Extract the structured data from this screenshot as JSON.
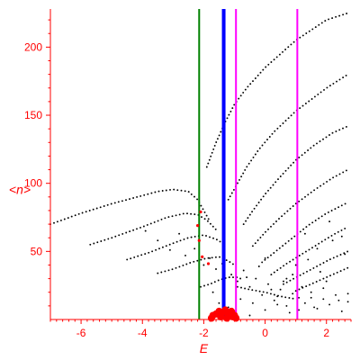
{
  "chart_data": {
    "type": "scatter",
    "title": "",
    "xlabel": "E",
    "ylabel": "<n>",
    "xlim": [
      -7,
      2.8
    ],
    "ylim": [
      0,
      228
    ],
    "xticks": [
      -6,
      -4,
      -2,
      0,
      2
    ],
    "yticks": [
      50,
      100,
      150,
      200
    ],
    "grid": false,
    "colors": {
      "axes": "#ff0000",
      "points": "#000000",
      "highlight_points": "#ff0000",
      "line_green": "#008000",
      "line_blue": "#0000ff",
      "line_magenta": "#ff00ff"
    },
    "vertical_lines": [
      {
        "x": -2.15,
        "color": "#008000",
        "width": 2
      },
      {
        "x": -1.35,
        "color": "#0000ff",
        "width": 4
      },
      {
        "x": -0.95,
        "color": "#ff00ff",
        "width": 2
      },
      {
        "x": 1.05,
        "color": "#ff00ff",
        "width": 2
      }
    ],
    "curves": [
      {
        "x": [
          -7.0,
          -6.0,
          -5.0,
          -4.0,
          -3.5,
          -3.0,
          -2.5,
          -2.2,
          -2.0,
          -1.8
        ],
        "y": [
          70,
          78,
          85,
          91,
          94,
          95.5,
          94,
          88,
          80,
          72
        ]
      },
      {
        "x": [
          -5.7,
          -5.0,
          -4.0,
          -3.2,
          -2.6,
          -2.2,
          -1.9,
          -1.6
        ],
        "y": [
          55,
          60,
          68,
          75,
          78,
          77,
          73,
          66
        ]
      },
      {
        "x": [
          -4.5,
          -3.8,
          -3.0,
          -2.5,
          -2.0,
          -1.6,
          -1.3
        ],
        "y": [
          44,
          49,
          56,
          60,
          62,
          59,
          55
        ]
      },
      {
        "x": [
          -3.5,
          -3.0,
          -2.4,
          -1.9,
          -1.5,
          -1.2,
          -1.0
        ],
        "y": [
          34,
          37,
          42,
          45,
          46,
          43,
          40
        ]
      },
      {
        "x": [
          -2.1,
          -1.8,
          -1.5,
          -1.2,
          -0.9,
          -0.7
        ],
        "y": [
          24,
          26,
          29,
          31,
          31,
          29
        ]
      },
      {
        "x": [
          -1.9,
          -1.6,
          -1.3,
          -1.0,
          -0.6,
          0.0,
          1.0,
          2.0,
          2.7
        ],
        "y": [
          112,
          130,
          145,
          158,
          170,
          185,
          205,
          220,
          225
        ]
      },
      {
        "x": [
          -1.2,
          -0.9,
          -0.6,
          -0.2,
          0.3,
          1.0,
          2.0,
          2.7
        ],
        "y": [
          88,
          100,
          112,
          125,
          138,
          153,
          170,
          180
        ]
      },
      {
        "x": [
          -0.7,
          -0.4,
          0.0,
          0.5,
          1.0,
          1.6,
          2.2,
          2.7
        ],
        "y": [
          70,
          80,
          92,
          105,
          117,
          128,
          137,
          142
        ]
      },
      {
        "x": [
          -0.4,
          0.0,
          0.5,
          1.0,
          1.6,
          2.2,
          2.7
        ],
        "y": [
          54,
          64,
          75,
          85,
          95,
          104,
          110
        ]
      },
      {
        "x": [
          -0.1,
          0.4,
          0.9,
          1.4,
          2.0,
          2.7
        ],
        "y": [
          42,
          51,
          60,
          69,
          78,
          86
        ]
      },
      {
        "x": [
          0.2,
          0.7,
          1.2,
          1.7,
          2.2,
          2.7
        ],
        "y": [
          33,
          41,
          48,
          55,
          62,
          68
        ]
      },
      {
        "x": [
          0.6,
          1.1,
          1.6,
          2.1,
          2.7
        ],
        "y": [
          26,
          32,
          38,
          44,
          50
        ]
      },
      {
        "x": [
          1.0,
          1.5,
          2.0,
          2.5,
          2.8
        ],
        "y": [
          21,
          26,
          31,
          36,
          39
        ]
      },
      {
        "x": [
          -0.9,
          -0.5,
          0.0,
          0.5,
          1.0
        ],
        "y": [
          24,
          22,
          20,
          17,
          15
        ]
      }
    ],
    "scatter": {
      "x": [
        -3.9,
        -3.5,
        -3.1,
        -2.8,
        -2.6,
        -2.3,
        -2.0,
        -1.8,
        -1.6,
        -1.4,
        -1.1,
        -0.9,
        -0.7,
        -0.5,
        -0.3,
        -0.1,
        0.1,
        0.3,
        0.5,
        0.7,
        0.9,
        1.1,
        1.3,
        1.5,
        1.7,
        1.9,
        2.1,
        2.3,
        2.5,
        2.7,
        -1.7,
        -1.2,
        -0.8,
        -0.4,
        0.0,
        0.4,
        0.8,
        1.2,
        1.6,
        2.0,
        2.4,
        -0.6,
        0.2,
        1.0,
        1.8,
        2.6,
        -1.0,
        0.6,
        1.4,
        2.2,
        -1.5,
        -0.2,
        0.9,
        1.7,
        2.5,
        -0.5,
        0.4,
        1.1,
        1.9,
        2.7,
        1.3,
        2.1,
        0.0,
        0.7,
        1.5
      ],
      "y": [
        65,
        58,
        51,
        63,
        47,
        52,
        40,
        45,
        37,
        41,
        33,
        28,
        36,
        24,
        30,
        18,
        26,
        14,
        22,
        10,
        19,
        16,
        12,
        20,
        8,
        15,
        11,
        18,
        6,
        13,
        20,
        9,
        15,
        12,
        7,
        17,
        5,
        24,
        9,
        28,
        14,
        31,
        22,
        40,
        35,
        48,
        6,
        28,
        44,
        58,
        12,
        39,
        33,
        52,
        61,
        3,
        11,
        7,
        23,
        19,
        63,
        72,
        45,
        30,
        16
      ]
    },
    "highlight_points": {
      "x": [
        -2.1,
        -2.2,
        -2.15,
        -2.05,
        -1.85,
        -1.7,
        -1.6,
        -1.5,
        -1.4,
        -1.3,
        -1.2,
        -1.1,
        -1.0,
        -1.75,
        -1.45,
        -1.25,
        -1.05,
        -0.95
      ],
      "y": [
        79,
        69,
        58,
        46,
        41,
        3,
        4,
        6,
        5,
        7,
        4,
        6,
        3,
        1,
        2,
        1,
        2,
        1
      ]
    }
  }
}
